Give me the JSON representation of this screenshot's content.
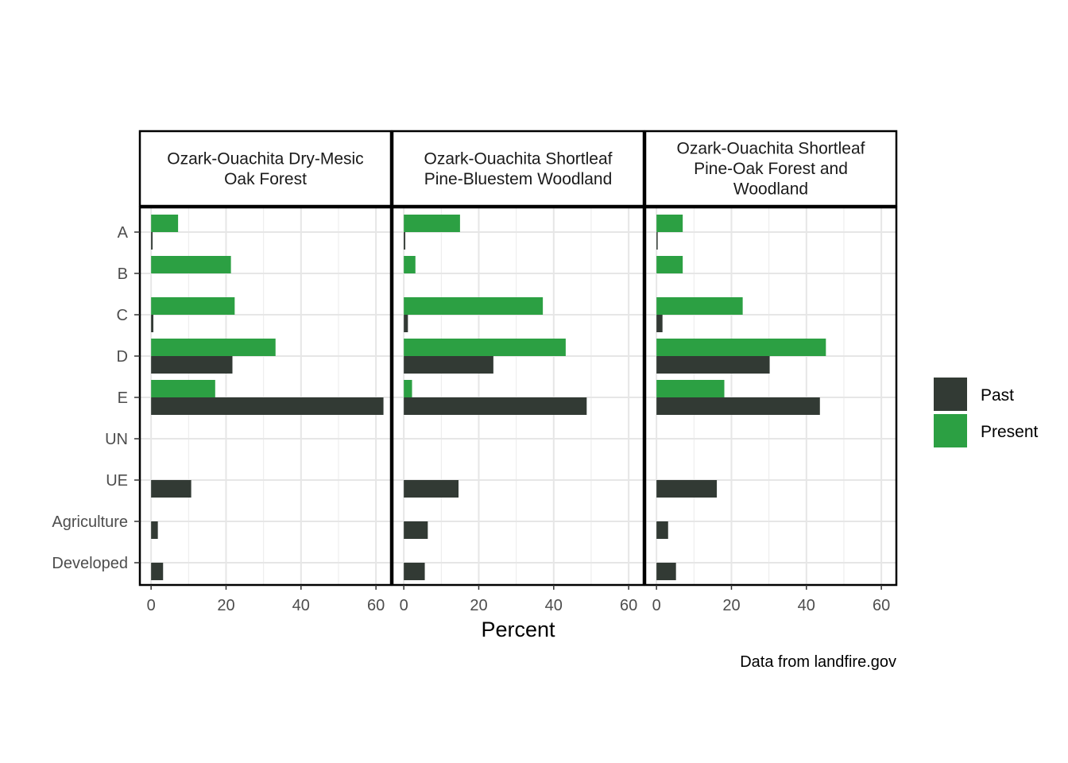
{
  "chart_data": {
    "type": "bar",
    "orientation": "horizontal",
    "facet_titles": [
      [
        "Ozark-Ouachita Dry-Mesic",
        "Oak Forest"
      ],
      [
        "Ozark-Ouachita Shortleaf",
        "Pine-Bluestem Woodland"
      ],
      [
        "Ozark-Ouachita Shortleaf",
        "Pine-Oak Forest and",
        "Woodland"
      ]
    ],
    "categories": [
      "A",
      "B",
      "C",
      "D",
      "E",
      "UN",
      "UE",
      "Agriculture",
      "Developed"
    ],
    "xlabel": "Percent",
    "ylabel": "",
    "xlim": [
      -3,
      64
    ],
    "xticks": [
      0,
      20,
      40,
      60
    ],
    "grid": true,
    "legend_position": "right",
    "caption": "Data from landfire.gov",
    "series": [
      {
        "name": "Past",
        "color": "#323a34",
        "values": [
          [
            0.4,
            0,
            0.6,
            21.7,
            62,
            0,
            10.7,
            1.8,
            3.2
          ],
          [
            0.4,
            0,
            1.1,
            23.9,
            48.8,
            0,
            14.6,
            6.4,
            5.6
          ],
          [
            0.3,
            0,
            1.6,
            30.2,
            43.6,
            0,
            16.1,
            3.1,
            5.2
          ]
        ]
      },
      {
        "name": "Present",
        "color": "#2ca043",
        "values": [
          [
            7.2,
            21.3,
            22.3,
            33.2,
            17.1,
            0,
            0,
            0,
            0
          ],
          [
            15,
            3.1,
            37.1,
            43.2,
            2.2,
            0,
            0,
            0,
            0
          ],
          [
            7,
            7,
            23,
            45.2,
            18.1,
            0,
            0,
            0,
            0
          ]
        ]
      }
    ]
  }
}
